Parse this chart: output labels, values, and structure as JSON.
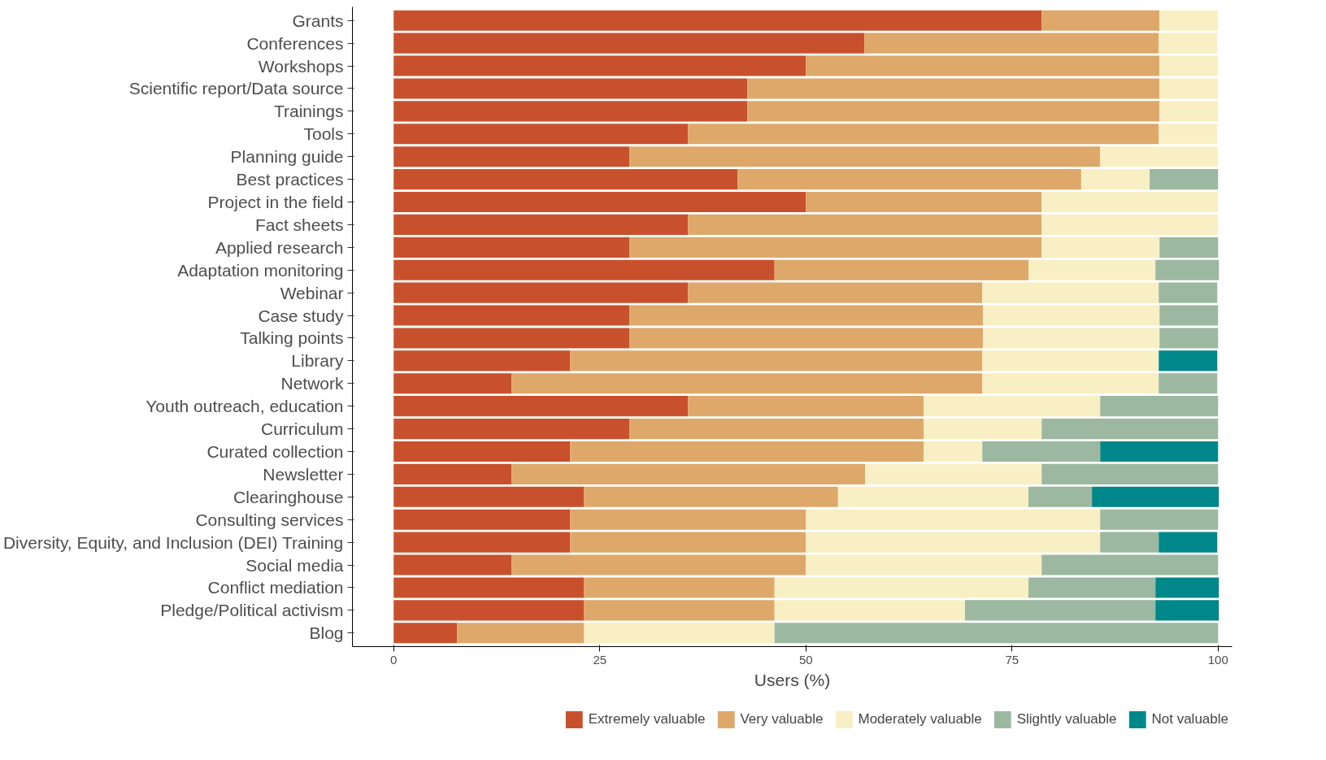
{
  "chart_data": {
    "type": "bar",
    "orientation": "horizontal",
    "stacked": true,
    "xlabel": "Users (%)",
    "categories": [
      "Grants",
      "Conferences",
      "Workshops",
      "Scientific report/Data source",
      "Trainings",
      "Tools",
      "Planning guide",
      "Best practices",
      "Project in the field",
      "Fact sheets",
      "Applied research",
      "Adaptation monitoring",
      "Webinar",
      "Case study",
      "Talking points",
      "Library",
      "Network",
      "Youth outreach, education",
      "Curriculum",
      "Curated collection",
      "Newsletter",
      "Clearinghouse",
      "Consulting services",
      "Diversity, Equity, and Inclusion (DEI) Training",
      "Social media",
      "Conflict mediation",
      "Pledge/Political activism",
      "Blog"
    ],
    "series": [
      {
        "name": "Extremely valuable",
        "color": "#c9502c",
        "values": [
          78.6,
          57.1,
          50,
          42.9,
          42.9,
          35.7,
          28.6,
          41.7,
          50,
          35.7,
          28.6,
          46.2,
          35.7,
          28.6,
          28.6,
          21.4,
          14.3,
          35.7,
          28.6,
          21.4,
          14.3,
          23.1,
          21.4,
          21.4,
          14.3,
          23.1,
          23.1,
          7.7
        ]
      },
      {
        "name": "Very valuable",
        "color": "#dea86a",
        "values": [
          14.3,
          35.7,
          42.9,
          50,
          50,
          57.1,
          57.1,
          41.7,
          28.6,
          42.9,
          50,
          30.8,
          35.7,
          42.9,
          42.9,
          50,
          57.1,
          28.6,
          35.7,
          42.9,
          42.9,
          30.8,
          28.6,
          28.6,
          35.7,
          23.1,
          23.1,
          15.4
        ]
      },
      {
        "name": "Moderately valuable",
        "color": "#f8efc4",
        "values": [
          7.1,
          7.1,
          7.1,
          7.1,
          7.1,
          7.1,
          14.3,
          8.3,
          21.4,
          21.4,
          14.3,
          15.4,
          21.4,
          21.4,
          21.4,
          21.4,
          21.4,
          21.4,
          14.3,
          7.1,
          21.4,
          23.1,
          35.7,
          35.7,
          28.6,
          30.8,
          23.1,
          23.1
        ]
      },
      {
        "name": "Slightly valuable",
        "color": "#9cb8a0",
        "values": [
          0,
          0,
          0,
          0,
          0,
          0,
          0,
          8.3,
          0,
          0,
          7.1,
          7.7,
          7.1,
          7.1,
          7.1,
          0,
          7.1,
          14.3,
          21.4,
          14.3,
          21.4,
          7.7,
          14.3,
          7.1,
          21.4,
          15.4,
          23.1,
          53.8
        ]
      },
      {
        "name": "Not valuable",
        "color": "#00878a",
        "values": [
          0,
          0,
          0,
          0,
          0,
          0,
          0,
          0,
          0,
          0,
          0,
          0,
          0,
          0,
          0,
          7.1,
          0,
          0,
          0,
          14.3,
          0,
          15.4,
          0,
          7.1,
          0,
          7.7,
          7.7,
          0
        ]
      }
    ],
    "xlim": [
      -5,
      101.7
    ],
    "xticks": [
      0,
      25,
      50,
      75,
      100
    ],
    "grid": false,
    "legend": "bottom"
  }
}
